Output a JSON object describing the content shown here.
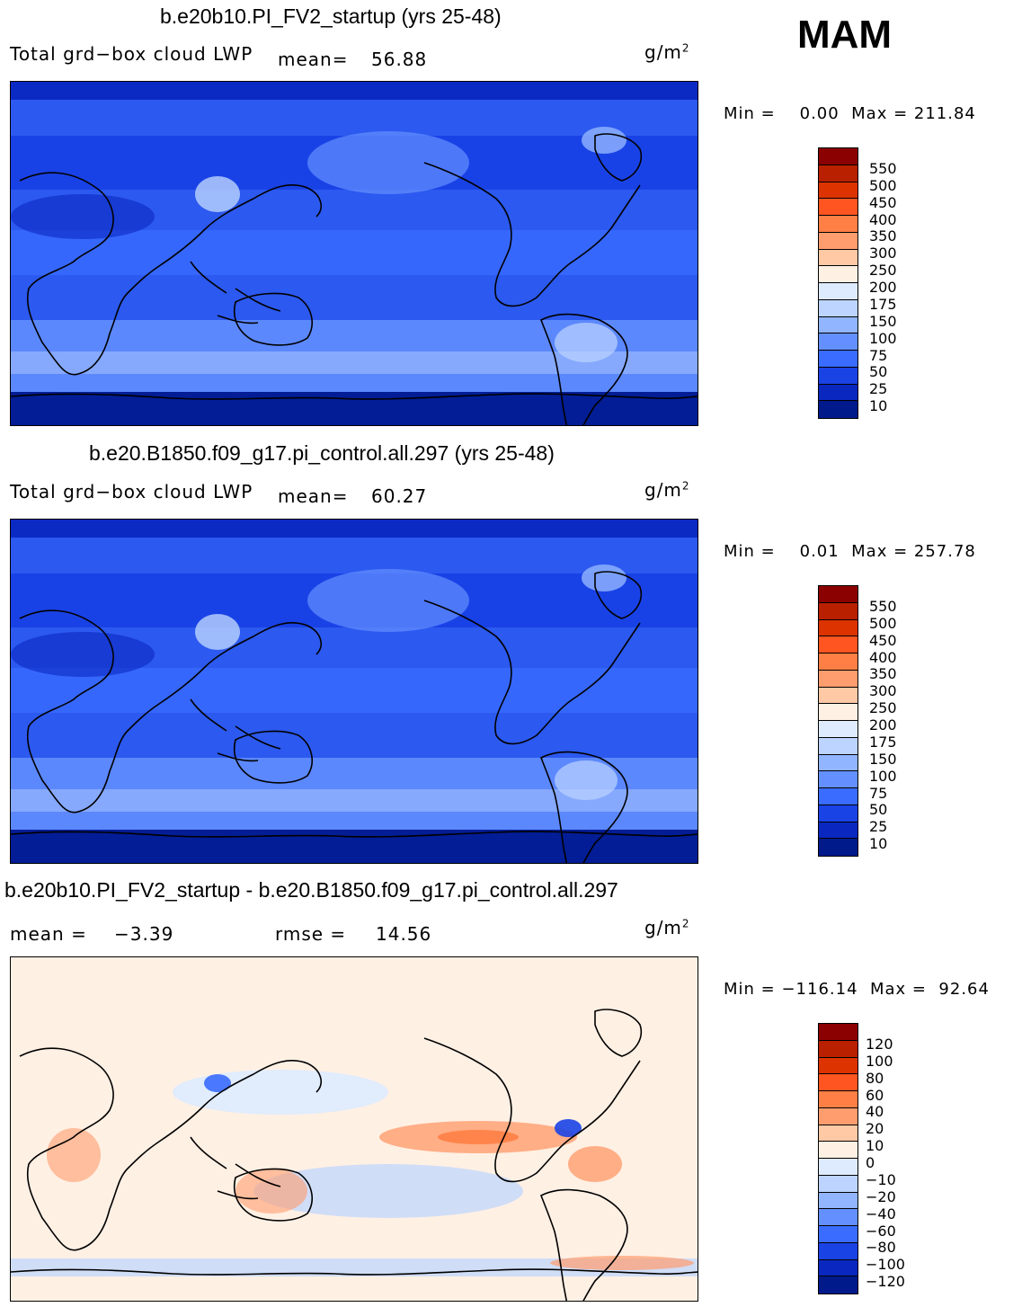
{
  "season": "MAM",
  "panels": [
    {
      "title": "b.e20b10.PI_FV2_startup (yrs 25-48)",
      "label": "Total grd−box cloud LWP",
      "mean_label": "mean=",
      "mean_value": "56.88",
      "units": "g/m",
      "units_exp": "2",
      "minmax": "Min =    0.00  Max = 211.84",
      "map_kind": "field",
      "colorbar": {
        "labels": [
          "550",
          "500",
          "450",
          "400",
          "350",
          "300",
          "250",
          "200",
          "175",
          "150",
          "100",
          "75",
          "50",
          "25",
          "10"
        ],
        "colors": [
          "#8b0000",
          "#b82000",
          "#dd3300",
          "#ff5520",
          "#ff7f45",
          "#ff9d6e",
          "#ffc9a6",
          "#fff0e4",
          "#deebff",
          "#bcd4ff",
          "#92b5ff",
          "#6490ff",
          "#3a6cff",
          "#1a43e6",
          "#0a28c0",
          "#001a8c"
        ]
      }
    },
    {
      "title": "b.e20.B1850.f09_g17.pi_control.all.297 (yrs 25-48)",
      "label": "Total grd−box cloud LWP",
      "mean_label": "mean=",
      "mean_value": "60.27",
      "units": "g/m",
      "units_exp": "2",
      "minmax": "Min =    0.01  Max = 257.78",
      "map_kind": "field",
      "colorbar": {
        "labels": [
          "550",
          "500",
          "450",
          "400",
          "350",
          "300",
          "250",
          "200",
          "175",
          "150",
          "100",
          "75",
          "50",
          "25",
          "10"
        ],
        "colors": [
          "#8b0000",
          "#b82000",
          "#dd3300",
          "#ff5520",
          "#ff7f45",
          "#ff9d6e",
          "#ffc9a6",
          "#fff0e4",
          "#deebff",
          "#bcd4ff",
          "#92b5ff",
          "#6490ff",
          "#3a6cff",
          "#1a43e6",
          "#0a28c0",
          "#001a8c"
        ]
      }
    },
    {
      "title": "b.e20b10.PI_FV2_startup - b.e20.B1850.f09_g17.pi_control.all.297",
      "mean_label": "mean =",
      "mean_value": "−3.39",
      "rmse_label": "rmse =",
      "rmse_value": "14.56",
      "units": "g/m",
      "units_exp": "2",
      "minmax": "Min = −116.14  Max =  92.64",
      "map_kind": "diff",
      "colorbar": {
        "labels": [
          "120",
          "100",
          "80",
          "60",
          "40",
          "20",
          "10",
          "0",
          "−10",
          "−20",
          "−40",
          "−60",
          "−80",
          "−100",
          "−120"
        ],
        "colors": [
          "#8b0000",
          "#b82000",
          "#dd3300",
          "#ff5520",
          "#ff7f45",
          "#ff9d6e",
          "#ffc9a6",
          "#fff0e4",
          "#deebff",
          "#bcd4ff",
          "#92b5ff",
          "#6490ff",
          "#3a6cff",
          "#1a43e6",
          "#0a28c0",
          "#001a8c"
        ]
      }
    }
  ]
}
